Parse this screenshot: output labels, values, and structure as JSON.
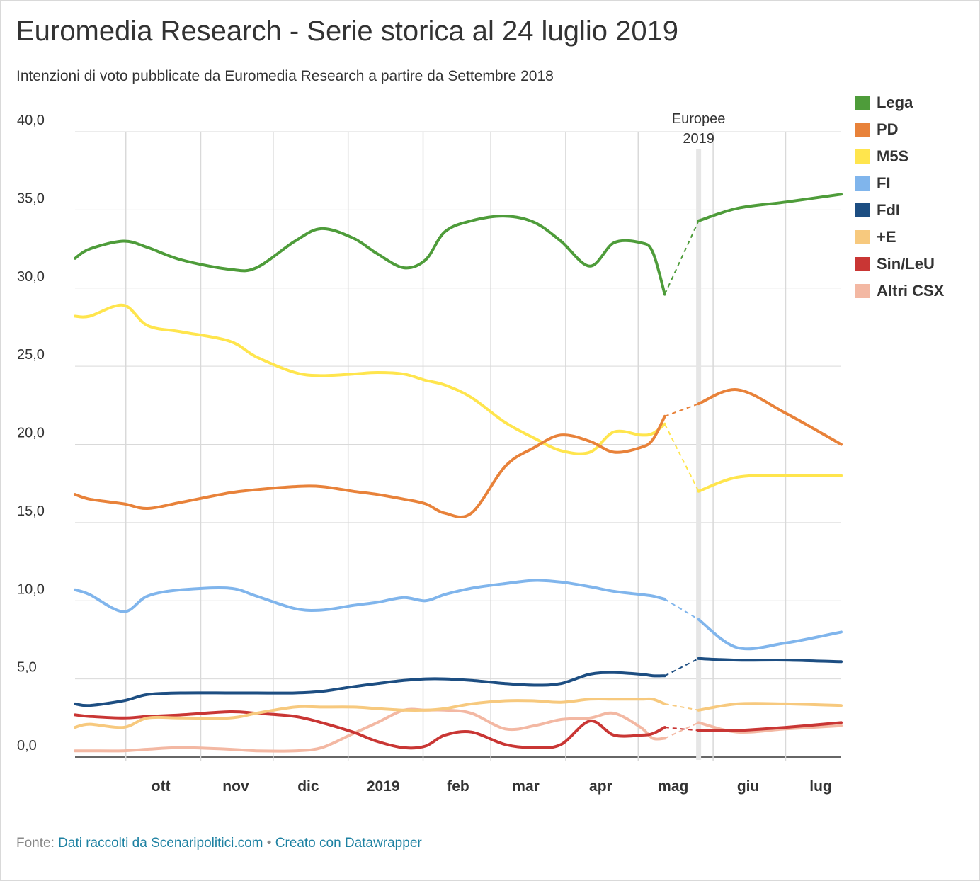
{
  "title": "Euromedia Research - Serie storica al 24 luglio 2019",
  "subtitle": "Intenzioni di voto pubblicate da Euromedia Research a partire da Settembre 2018",
  "source": {
    "prefix": "Fonte:",
    "link_text": "Dati raccolti da Scenaripolitici.com",
    "separator": "•",
    "credit_text": "Creato con Datawrapper"
  },
  "chart_data": {
    "type": "line",
    "title": "Euromedia Research - Serie storica al 24 luglio 2019",
    "ylim": [
      0,
      40
    ],
    "xlim": [
      "2018-09-10",
      "2019-07-24"
    ],
    "y_ticks": [
      {
        "value": 40,
        "label": "40,0"
      },
      {
        "value": 35,
        "label": "35,0"
      },
      {
        "value": 30,
        "label": "30,0"
      },
      {
        "value": 25,
        "label": "25,0"
      },
      {
        "value": 20,
        "label": "20,0"
      },
      {
        "value": 15,
        "label": "15,0"
      },
      {
        "value": 10,
        "label": "10,0"
      },
      {
        "value": 5,
        "label": "5,0"
      },
      {
        "value": 0,
        "label": "0,0"
      }
    ],
    "x_ticks": [
      {
        "date": "2018-10-01",
        "label": "ott"
      },
      {
        "date": "2018-11-01",
        "label": "nov"
      },
      {
        "date": "2018-12-01",
        "label": "dic"
      },
      {
        "date": "2019-01-01",
        "label": "2019"
      },
      {
        "date": "2019-02-01",
        "label": "feb"
      },
      {
        "date": "2019-03-01",
        "label": "mar"
      },
      {
        "date": "2019-04-01",
        "label": "apr"
      },
      {
        "date": "2019-05-01",
        "label": "mag"
      },
      {
        "date": "2019-06-01",
        "label": "giu"
      },
      {
        "date": "2019-07-01",
        "label": "lug"
      }
    ],
    "grid": true,
    "legend_position": "right",
    "annotation": {
      "date": "2019-05-26",
      "label_lines": [
        "Europee",
        "2019"
      ]
    },
    "break_dates": [
      "2019-05-12",
      "2019-05-26"
    ],
    "series": [
      {
        "name": "Lega",
        "color": "#4e9c3a",
        "points": [
          [
            "2018-09-10",
            31.9
          ],
          [
            "2018-09-16",
            32.5
          ],
          [
            "2018-09-30",
            33.0
          ],
          [
            "2018-10-10",
            32.6
          ],
          [
            "2018-10-24",
            31.8
          ],
          [
            "2018-11-13",
            31.2
          ],
          [
            "2018-11-24",
            31.3
          ],
          [
            "2018-12-10",
            33.0
          ],
          [
            "2018-12-21",
            33.8
          ],
          [
            "2019-01-03",
            33.2
          ],
          [
            "2019-01-13",
            32.2
          ],
          [
            "2019-01-24",
            31.3
          ],
          [
            "2019-02-02",
            31.8
          ],
          [
            "2019-02-10",
            33.6
          ],
          [
            "2019-02-21",
            34.3
          ],
          [
            "2019-03-07",
            34.6
          ],
          [
            "2019-03-19",
            34.2
          ],
          [
            "2019-03-30",
            33.0
          ],
          [
            "2019-04-11",
            31.4
          ],
          [
            "2019-04-21",
            32.9
          ],
          [
            "2019-05-02",
            32.9
          ],
          [
            "2019-05-07",
            32.3
          ],
          [
            "2019-05-12",
            29.6
          ],
          [
            "2019-05-26",
            34.3
          ],
          [
            "2019-06-11",
            35.1
          ],
          [
            "2019-07-01",
            35.5
          ],
          [
            "2019-07-24",
            36.0
          ]
        ]
      },
      {
        "name": "PD",
        "color": "#e8823a",
        "points": [
          [
            "2018-09-10",
            16.8
          ],
          [
            "2018-09-16",
            16.5
          ],
          [
            "2018-09-30",
            16.2
          ],
          [
            "2018-10-10",
            15.9
          ],
          [
            "2018-10-24",
            16.3
          ],
          [
            "2018-11-13",
            16.9
          ],
          [
            "2018-11-24",
            17.1
          ],
          [
            "2018-12-10",
            17.3
          ],
          [
            "2018-12-21",
            17.3
          ],
          [
            "2019-01-03",
            17.0
          ],
          [
            "2019-01-13",
            16.8
          ],
          [
            "2019-01-24",
            16.5
          ],
          [
            "2019-02-02",
            16.2
          ],
          [
            "2019-02-10",
            15.6
          ],
          [
            "2019-02-21",
            15.6
          ],
          [
            "2019-03-07",
            18.6
          ],
          [
            "2019-03-19",
            19.8
          ],
          [
            "2019-03-30",
            20.6
          ],
          [
            "2019-04-11",
            20.2
          ],
          [
            "2019-04-21",
            19.5
          ],
          [
            "2019-05-02",
            19.8
          ],
          [
            "2019-05-07",
            20.3
          ],
          [
            "2019-05-12",
            21.8
          ],
          [
            "2019-05-26",
            22.6
          ],
          [
            "2019-06-11",
            23.5
          ],
          [
            "2019-07-01",
            22.0
          ],
          [
            "2019-07-24",
            20.0
          ]
        ]
      },
      {
        "name": "M5S",
        "color": "#ffe54d",
        "points": [
          [
            "2018-09-10",
            28.2
          ],
          [
            "2018-09-16",
            28.2
          ],
          [
            "2018-09-30",
            28.9
          ],
          [
            "2018-10-10",
            27.6
          ],
          [
            "2018-10-24",
            27.2
          ],
          [
            "2018-11-13",
            26.6
          ],
          [
            "2018-11-24",
            25.6
          ],
          [
            "2018-12-10",
            24.6
          ],
          [
            "2018-12-21",
            24.4
          ],
          [
            "2019-01-03",
            24.5
          ],
          [
            "2019-01-13",
            24.6
          ],
          [
            "2019-01-24",
            24.5
          ],
          [
            "2019-02-02",
            24.1
          ],
          [
            "2019-02-10",
            23.8
          ],
          [
            "2019-02-21",
            23.0
          ],
          [
            "2019-03-07",
            21.4
          ],
          [
            "2019-03-19",
            20.4
          ],
          [
            "2019-03-30",
            19.6
          ],
          [
            "2019-04-11",
            19.5
          ],
          [
            "2019-04-21",
            20.8
          ],
          [
            "2019-05-02",
            20.6
          ],
          [
            "2019-05-07",
            20.7
          ],
          [
            "2019-05-12",
            21.3
          ],
          [
            "2019-05-26",
            17.0
          ],
          [
            "2019-06-11",
            17.9
          ],
          [
            "2019-07-01",
            18.0
          ],
          [
            "2019-07-24",
            18.0
          ]
        ]
      },
      {
        "name": "FI",
        "color": "#80b5ec",
        "points": [
          [
            "2018-09-10",
            10.7
          ],
          [
            "2018-09-16",
            10.4
          ],
          [
            "2018-09-30",
            9.3
          ],
          [
            "2018-10-10",
            10.3
          ],
          [
            "2018-10-24",
            10.7
          ],
          [
            "2018-11-13",
            10.8
          ],
          [
            "2018-11-24",
            10.3
          ],
          [
            "2018-12-10",
            9.5
          ],
          [
            "2018-12-21",
            9.4
          ],
          [
            "2019-01-03",
            9.7
          ],
          [
            "2019-01-13",
            9.9
          ],
          [
            "2019-01-24",
            10.2
          ],
          [
            "2019-02-02",
            10.0
          ],
          [
            "2019-02-10",
            10.4
          ],
          [
            "2019-02-21",
            10.8
          ],
          [
            "2019-03-07",
            11.1
          ],
          [
            "2019-03-19",
            11.3
          ],
          [
            "2019-03-30",
            11.2
          ],
          [
            "2019-04-11",
            10.9
          ],
          [
            "2019-04-21",
            10.6
          ],
          [
            "2019-05-02",
            10.4
          ],
          [
            "2019-05-07",
            10.3
          ],
          [
            "2019-05-12",
            10.1
          ],
          [
            "2019-05-26",
            8.8
          ],
          [
            "2019-06-11",
            7.0
          ],
          [
            "2019-07-01",
            7.3
          ],
          [
            "2019-07-24",
            8.0
          ]
        ]
      },
      {
        "name": "FdI",
        "color": "#1d4e82",
        "points": [
          [
            "2018-09-10",
            3.4
          ],
          [
            "2018-09-16",
            3.3
          ],
          [
            "2018-09-30",
            3.6
          ],
          [
            "2018-10-10",
            4.0
          ],
          [
            "2018-10-24",
            4.1
          ],
          [
            "2018-11-13",
            4.1
          ],
          [
            "2018-11-24",
            4.1
          ],
          [
            "2018-12-10",
            4.1
          ],
          [
            "2018-12-21",
            4.2
          ],
          [
            "2019-01-03",
            4.5
          ],
          [
            "2019-01-13",
            4.7
          ],
          [
            "2019-01-24",
            4.9
          ],
          [
            "2019-02-02",
            5.0
          ],
          [
            "2019-02-10",
            5.0
          ],
          [
            "2019-02-21",
            4.9
          ],
          [
            "2019-03-07",
            4.7
          ],
          [
            "2019-03-19",
            4.6
          ],
          [
            "2019-03-30",
            4.7
          ],
          [
            "2019-04-11",
            5.3
          ],
          [
            "2019-04-21",
            5.4
          ],
          [
            "2019-05-02",
            5.3
          ],
          [
            "2019-05-07",
            5.2
          ],
          [
            "2019-05-12",
            5.2
          ],
          [
            "2019-05-26",
            6.3
          ],
          [
            "2019-06-11",
            6.2
          ],
          [
            "2019-07-01",
            6.2
          ],
          [
            "2019-07-24",
            6.1
          ]
        ]
      },
      {
        "name": "+E",
        "color": "#f7c97e",
        "points": [
          [
            "2018-09-10",
            1.9
          ],
          [
            "2018-09-16",
            2.1
          ],
          [
            "2018-09-30",
            1.9
          ],
          [
            "2018-10-10",
            2.5
          ],
          [
            "2018-10-24",
            2.5
          ],
          [
            "2018-11-13",
            2.5
          ],
          [
            "2018-11-24",
            2.8
          ],
          [
            "2018-12-10",
            3.2
          ],
          [
            "2018-12-21",
            3.2
          ],
          [
            "2019-01-03",
            3.2
          ],
          [
            "2019-01-13",
            3.1
          ],
          [
            "2019-01-24",
            3.0
          ],
          [
            "2019-02-02",
            3.0
          ],
          [
            "2019-02-10",
            3.1
          ],
          [
            "2019-02-21",
            3.4
          ],
          [
            "2019-03-07",
            3.6
          ],
          [
            "2019-03-19",
            3.6
          ],
          [
            "2019-03-30",
            3.5
          ],
          [
            "2019-04-11",
            3.7
          ],
          [
            "2019-04-21",
            3.7
          ],
          [
            "2019-05-02",
            3.7
          ],
          [
            "2019-05-07",
            3.7
          ],
          [
            "2019-05-12",
            3.4
          ],
          [
            "2019-05-26",
            3.0
          ],
          [
            "2019-06-11",
            3.4
          ],
          [
            "2019-07-01",
            3.4
          ],
          [
            "2019-07-24",
            3.3
          ]
        ]
      },
      {
        "name": "Sin/LeU",
        "color": "#c93634",
        "points": [
          [
            "2018-09-10",
            2.7
          ],
          [
            "2018-09-16",
            2.6
          ],
          [
            "2018-09-30",
            2.5
          ],
          [
            "2018-10-10",
            2.6
          ],
          [
            "2018-10-24",
            2.7
          ],
          [
            "2018-11-13",
            2.9
          ],
          [
            "2018-11-24",
            2.8
          ],
          [
            "2018-12-10",
            2.6
          ],
          [
            "2018-12-21",
            2.2
          ],
          [
            "2019-01-03",
            1.6
          ],
          [
            "2019-01-13",
            1.0
          ],
          [
            "2019-01-24",
            0.6
          ],
          [
            "2019-02-02",
            0.7
          ],
          [
            "2019-02-10",
            1.4
          ],
          [
            "2019-02-21",
            1.6
          ],
          [
            "2019-03-07",
            0.8
          ],
          [
            "2019-03-19",
            0.6
          ],
          [
            "2019-03-30",
            0.8
          ],
          [
            "2019-04-11",
            2.3
          ],
          [
            "2019-04-21",
            1.4
          ],
          [
            "2019-05-02",
            1.4
          ],
          [
            "2019-05-07",
            1.5
          ],
          [
            "2019-05-12",
            1.9
          ],
          [
            "2019-05-26",
            1.7
          ],
          [
            "2019-06-11",
            1.7
          ],
          [
            "2019-07-01",
            1.9
          ],
          [
            "2019-07-24",
            2.2
          ]
        ]
      },
      {
        "name": "Altri CSX",
        "color": "#f3b8a3",
        "points": [
          [
            "2018-09-10",
            0.4
          ],
          [
            "2018-09-16",
            0.4
          ],
          [
            "2018-09-30",
            0.4
          ],
          [
            "2018-10-10",
            0.5
          ],
          [
            "2018-10-24",
            0.6
          ],
          [
            "2018-11-13",
            0.5
          ],
          [
            "2018-11-24",
            0.4
          ],
          [
            "2018-12-10",
            0.4
          ],
          [
            "2018-12-21",
            0.6
          ],
          [
            "2019-01-03",
            1.5
          ],
          [
            "2019-01-13",
            2.2
          ],
          [
            "2019-01-24",
            3.0
          ],
          [
            "2019-02-02",
            3.0
          ],
          [
            "2019-02-10",
            3.0
          ],
          [
            "2019-02-21",
            2.8
          ],
          [
            "2019-03-07",
            1.8
          ],
          [
            "2019-03-19",
            2.0
          ],
          [
            "2019-03-30",
            2.4
          ],
          [
            "2019-04-11",
            2.5
          ],
          [
            "2019-04-21",
            2.8
          ],
          [
            "2019-05-02",
            1.9
          ],
          [
            "2019-05-07",
            1.2
          ],
          [
            "2019-05-12",
            1.2
          ],
          [
            "2019-05-26",
            2.2
          ],
          [
            "2019-06-11",
            1.6
          ],
          [
            "2019-07-01",
            1.8
          ],
          [
            "2019-07-24",
            2.0
          ]
        ]
      }
    ]
  }
}
